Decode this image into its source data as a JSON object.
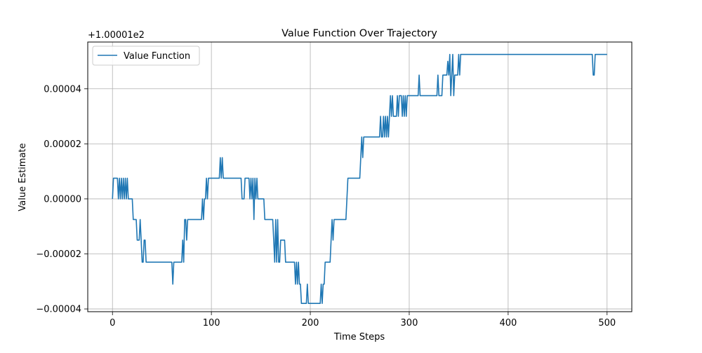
{
  "chart_data": {
    "type": "line",
    "title": "Value Function Over Trajectory",
    "xlabel": "Time Steps",
    "ylabel": "Value Estimate",
    "offset_label": "+1.00001e2",
    "xlim": [
      -25,
      525
    ],
    "ylim": [
      -4.1e-05,
      5.7e-05
    ],
    "xticks": [
      0,
      100,
      200,
      300,
      400,
      500
    ],
    "xtick_labels": [
      "0",
      "100",
      "200",
      "300",
      "400",
      "500"
    ],
    "yticks": [
      -4e-05,
      -2e-05,
      0.0,
      2e-05,
      4e-05
    ],
    "ytick_labels": [
      "−0.00004",
      "−0.00002",
      "0.00000",
      "0.00002",
      "0.00004"
    ],
    "grid": true,
    "legend_position": "upper-left",
    "series": [
      {
        "name": "Value Function",
        "color": "#1f77b4",
        "points": [
          [
            0,
            0.0
          ],
          [
            1,
            7.5e-06
          ],
          [
            2,
            7.5e-06
          ],
          [
            5,
            7.5e-06
          ],
          [
            6,
            0.0
          ],
          [
            7,
            7.5e-06
          ],
          [
            8,
            0.0
          ],
          [
            9,
            7.5e-06
          ],
          [
            10,
            0.0
          ],
          [
            11,
            7.5e-06
          ],
          [
            12,
            0.0
          ],
          [
            13,
            7.5e-06
          ],
          [
            14,
            0.0
          ],
          [
            15,
            7.5e-06
          ],
          [
            16,
            0.0
          ],
          [
            20,
            0.0
          ],
          [
            21,
            -7.5e-06
          ],
          [
            24,
            -7.5e-06
          ],
          [
            25,
            -1.5e-05
          ],
          [
            27,
            -1.5e-05
          ],
          [
            28,
            -7.5e-06
          ],
          [
            29,
            -1.5e-05
          ],
          [
            30,
            -2.3e-05
          ],
          [
            31,
            -2.3e-05
          ],
          [
            32,
            -1.5e-05
          ],
          [
            33,
            -1.5e-05
          ],
          [
            34,
            -2.3e-05
          ],
          [
            60,
            -2.3e-05
          ],
          [
            61,
            -3.1e-05
          ],
          [
            62,
            -2.3e-05
          ],
          [
            70,
            -2.3e-05
          ],
          [
            71,
            -1.5e-05
          ],
          [
            72,
            -2.3e-05
          ],
          [
            73,
            -7.5e-06
          ],
          [
            74,
            -7.5e-06
          ],
          [
            75,
            -1.5e-05
          ],
          [
            76,
            -7.5e-06
          ],
          [
            90,
            -7.5e-06
          ],
          [
            91,
            0.0
          ],
          [
            92,
            -7.5e-06
          ],
          [
            93,
            0.0
          ],
          [
            94,
            0.0
          ],
          [
            95,
            7.5e-06
          ],
          [
            96,
            0.0
          ],
          [
            97,
            7.5e-06
          ],
          [
            108,
            7.5e-06
          ],
          [
            109,
            1.5e-05
          ],
          [
            110,
            7.5e-06
          ],
          [
            111,
            1.5e-05
          ],
          [
            112,
            7.5e-06
          ],
          [
            130,
            7.5e-06
          ],
          [
            131,
            0.0
          ],
          [
            133,
            0.0
          ],
          [
            134,
            7.5e-06
          ],
          [
            138,
            7.5e-06
          ],
          [
            139,
            0.0
          ],
          [
            140,
            7.5e-06
          ],
          [
            141,
            0.0
          ],
          [
            142,
            7.5e-06
          ],
          [
            143,
            -7.5e-06
          ],
          [
            144,
            7.5e-06
          ],
          [
            145,
            0.0
          ],
          [
            146,
            7.5e-06
          ],
          [
            147,
            0.0
          ],
          [
            153,
            0.0
          ],
          [
            154,
            -7.5e-06
          ],
          [
            162,
            -7.5e-06
          ],
          [
            163,
            -1.5e-05
          ],
          [
            164,
            -2.3e-05
          ],
          [
            165,
            -7.5e-06
          ],
          [
            166,
            -2.3e-05
          ],
          [
            167,
            -7.5e-06
          ],
          [
            168,
            -2.3e-05
          ],
          [
            169,
            -2.3e-05
          ],
          [
            170,
            -1.5e-05
          ],
          [
            174,
            -1.5e-05
          ],
          [
            175,
            -2.3e-05
          ],
          [
            184,
            -2.3e-05
          ],
          [
            185,
            -3.1e-05
          ],
          [
            186,
            -2.3e-05
          ],
          [
            187,
            -3.1e-05
          ],
          [
            188,
            -2.3e-05
          ],
          [
            189,
            -3.1e-05
          ],
          [
            190,
            -3.1e-05
          ],
          [
            191,
            -3.8e-05
          ],
          [
            196,
            -3.8e-05
          ],
          [
            197,
            -3.1e-05
          ],
          [
            198,
            -3.8e-05
          ],
          [
            210,
            -3.8e-05
          ],
          [
            211,
            -3.1e-05
          ],
          [
            212,
            -3.8e-05
          ],
          [
            213,
            -3.1e-05
          ],
          [
            214,
            -3.1e-05
          ],
          [
            215,
            -2.3e-05
          ],
          [
            220,
            -2.3e-05
          ],
          [
            221,
            -1.5e-05
          ],
          [
            222,
            -7.5e-06
          ],
          [
            223,
            -1.5e-05
          ],
          [
            224,
            -7.5e-06
          ],
          [
            236,
            -7.5e-06
          ],
          [
            237,
            0.0
          ],
          [
            238,
            7.5e-06
          ],
          [
            250,
            7.5e-06
          ],
          [
            251,
            1.5e-05
          ],
          [
            252,
            2.25e-05
          ],
          [
            253,
            1.5e-05
          ],
          [
            254,
            2.25e-05
          ],
          [
            270,
            2.25e-05
          ],
          [
            271,
            3e-05
          ],
          [
            272,
            2.25e-05
          ],
          [
            273,
            2.25e-05
          ],
          [
            274,
            3e-05
          ],
          [
            275,
            2.25e-05
          ],
          [
            276,
            3e-05
          ],
          [
            277,
            2.25e-05
          ],
          [
            278,
            3e-05
          ],
          [
            279,
            2.25e-05
          ],
          [
            280,
            3e-05
          ],
          [
            281,
            3.75e-05
          ],
          [
            282,
            3e-05
          ],
          [
            283,
            3.75e-05
          ],
          [
            284,
            3e-05
          ],
          [
            287,
            3e-05
          ],
          [
            288,
            3.75e-05
          ],
          [
            289,
            3e-05
          ],
          [
            290,
            3.75e-05
          ],
          [
            292,
            3.75e-05
          ],
          [
            293,
            3e-05
          ],
          [
            294,
            3.75e-05
          ],
          [
            295,
            3e-05
          ],
          [
            296,
            3.75e-05
          ],
          [
            297,
            3e-05
          ],
          [
            298,
            3.75e-05
          ],
          [
            309,
            3.75e-05
          ],
          [
            310,
            4.5e-05
          ],
          [
            311,
            3.75e-05
          ],
          [
            328,
            3.75e-05
          ],
          [
            329,
            4.5e-05
          ],
          [
            330,
            3.75e-05
          ],
          [
            333,
            3.75e-05
          ],
          [
            334,
            4.5e-05
          ],
          [
            338,
            4.5e-05
          ],
          [
            339,
            5e-05
          ],
          [
            340,
            4.5e-05
          ],
          [
            341,
            5.25e-05
          ],
          [
            342,
            3.75e-05
          ],
          [
            343,
            4.5e-05
          ],
          [
            344,
            5.25e-05
          ],
          [
            345,
            3.75e-05
          ],
          [
            346,
            4.5e-05
          ],
          [
            349,
            4.5e-05
          ],
          [
            350,
            5.25e-05
          ],
          [
            351,
            4.5e-05
          ],
          [
            352,
            5.25e-05
          ],
          [
            485,
            5.25e-05
          ],
          [
            486,
            4.5e-05
          ],
          [
            487,
            4.5e-05
          ],
          [
            488,
            5.25e-05
          ],
          [
            500,
            5.25e-05
          ]
        ]
      }
    ]
  }
}
